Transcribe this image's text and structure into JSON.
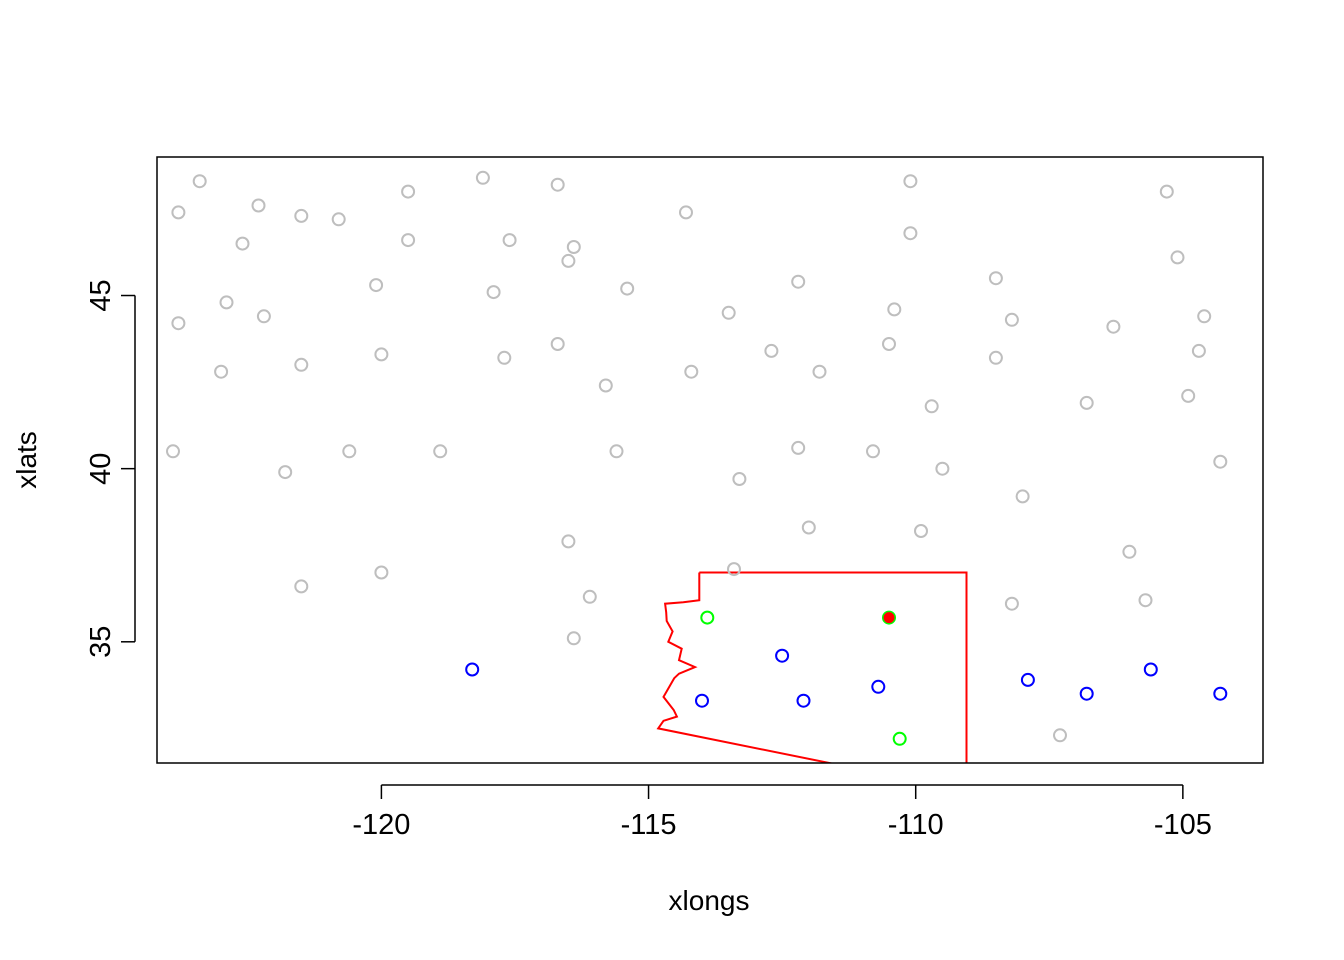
{
  "chart_data": {
    "type": "scatter",
    "title": "",
    "xlabel": "xlongs",
    "ylabel": "xlats",
    "xlim": [
      -124.2,
      -103.5
    ],
    "ylim": [
      31.5,
      49
    ],
    "x_ticks": [
      -120,
      -115,
      -110,
      -105
    ],
    "y_ticks": [
      35,
      40,
      45
    ],
    "x_tick_labels": [
      "-120",
      "-115",
      "-110",
      "-105"
    ],
    "y_tick_labels": [
      "35",
      "40",
      "45"
    ],
    "grid": false,
    "legend": "none",
    "colors": {
      "gray": "#bebebe",
      "blue": "#0000ff",
      "green": "#00ff00",
      "red": "#ff0000",
      "frame": "#000000"
    },
    "series": [
      {
        "color": "#bebebe",
        "marker": "open-circle",
        "points": [
          [
            -123.4,
            48.3
          ],
          [
            -123.8,
            47.4
          ],
          [
            -122.9,
            44.8
          ],
          [
            -123.8,
            44.2
          ],
          [
            -123.9,
            40.5
          ],
          [
            -123.0,
            42.8
          ],
          [
            -122.6,
            46.5
          ],
          [
            -122.3,
            47.6
          ],
          [
            -122.2,
            44.4
          ],
          [
            -121.5,
            47.3
          ],
          [
            -121.5,
            43.0
          ],
          [
            -121.8,
            39.9
          ],
          [
            -121.5,
            36.6
          ],
          [
            -120.8,
            47.2
          ],
          [
            -120.6,
            40.5
          ],
          [
            -120.1,
            45.3
          ],
          [
            -120.0,
            43.3
          ],
          [
            -120.0,
            37.0
          ],
          [
            -119.5,
            48.0
          ],
          [
            -119.5,
            46.6
          ],
          [
            -118.9,
            40.5
          ],
          [
            -118.1,
            48.4
          ],
          [
            -117.9,
            45.1
          ],
          [
            -117.6,
            46.6
          ],
          [
            -117.7,
            43.2
          ],
          [
            -116.7,
            48.2
          ],
          [
            -116.7,
            43.6
          ],
          [
            -116.5,
            46.0
          ],
          [
            -116.4,
            46.4
          ],
          [
            -116.5,
            37.9
          ],
          [
            -116.1,
            36.3
          ],
          [
            -116.4,
            35.1
          ],
          [
            -115.4,
            45.2
          ],
          [
            -115.8,
            42.4
          ],
          [
            -115.6,
            40.5
          ],
          [
            -114.3,
            47.4
          ],
          [
            -114.2,
            42.8
          ],
          [
            -113.5,
            44.5
          ],
          [
            -113.3,
            39.7
          ],
          [
            -113.4,
            37.1
          ],
          [
            -112.7,
            43.4
          ],
          [
            -112.2,
            45.4
          ],
          [
            -111.8,
            42.8
          ],
          [
            -112.2,
            40.6
          ],
          [
            -112.0,
            38.3
          ],
          [
            -110.8,
            40.5
          ],
          [
            -110.1,
            48.3
          ],
          [
            -110.1,
            46.8
          ],
          [
            -110.4,
            44.6
          ],
          [
            -110.5,
            43.6
          ],
          [
            -109.7,
            41.8
          ],
          [
            -109.5,
            40.0
          ],
          [
            -109.9,
            38.2
          ],
          [
            -108.5,
            45.5
          ],
          [
            -108.2,
            44.3
          ],
          [
            -108.5,
            43.2
          ],
          [
            -108.0,
            39.2
          ],
          [
            -108.2,
            36.1
          ],
          [
            -106.8,
            41.9
          ],
          [
            -106.3,
            44.1
          ],
          [
            -106.0,
            37.6
          ],
          [
            -105.7,
            36.2
          ],
          [
            -107.3,
            32.3
          ],
          [
            -105.3,
            48.0
          ],
          [
            -105.1,
            46.1
          ],
          [
            -104.6,
            44.4
          ],
          [
            -104.7,
            43.4
          ],
          [
            -104.9,
            42.1
          ],
          [
            -104.3,
            40.2
          ]
        ]
      },
      {
        "color": "#0000ff",
        "marker": "open-circle",
        "points": [
          [
            -118.3,
            34.2
          ],
          [
            -114.0,
            33.3
          ],
          [
            -112.5,
            34.6
          ],
          [
            -112.1,
            33.3
          ],
          [
            -110.7,
            33.7
          ],
          [
            -107.9,
            33.9
          ],
          [
            -106.8,
            33.5
          ],
          [
            -105.6,
            34.2
          ],
          [
            -104.3,
            33.5
          ]
        ]
      },
      {
        "color": "#00ff00",
        "marker": "open-circle",
        "points": [
          [
            -113.9,
            35.7
          ],
          [
            -110.5,
            35.7
          ],
          [
            -110.3,
            32.2
          ]
        ]
      },
      {
        "color": "#ff0000",
        "marker": "filled-circle",
        "points": [
          [
            -110.5,
            35.7
          ]
        ]
      }
    ],
    "outline": {
      "color": "#ff0000",
      "path": [
        [
          -114.05,
          37.0
        ],
        [
          -109.05,
          37.0
        ],
        [
          -109.05,
          36.0
        ],
        [
          -109.05,
          31.33
        ],
        [
          -111.07,
          31.33
        ],
        [
          -114.82,
          32.5
        ],
        [
          -114.72,
          32.72
        ],
        [
          -114.47,
          32.84
        ],
        [
          -114.53,
          33.03
        ],
        [
          -114.72,
          33.41
        ],
        [
          -114.52,
          33.95
        ],
        [
          -114.43,
          34.08
        ],
        [
          -114.13,
          34.27
        ],
        [
          -114.43,
          34.47
        ],
        [
          -114.38,
          34.8
        ],
        [
          -114.63,
          35.0
        ],
        [
          -114.55,
          35.3
        ],
        [
          -114.66,
          35.6
        ],
        [
          -114.67,
          35.85
        ],
        [
          -114.69,
          36.1
        ],
        [
          -114.35,
          36.14
        ],
        [
          -114.05,
          36.2
        ],
        [
          -114.05,
          37.0
        ]
      ]
    }
  }
}
